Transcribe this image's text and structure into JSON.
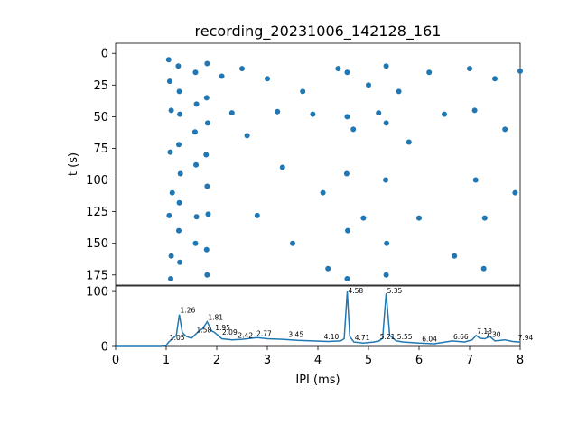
{
  "title": "recording_20231006_142128_161",
  "colors": {
    "series": "#1f77b4",
    "axis": "#000000",
    "background": "#ffffff"
  },
  "chart_data": [
    {
      "type": "scatter",
      "title": "recording_20231006_142128_161",
      "xlabel": "",
      "ylabel": "t (s)",
      "xlim": [
        0,
        8
      ],
      "ylim": [
        183,
        -8
      ],
      "y_inverted": true,
      "shared_x_with": "histogram",
      "yticks": [
        0,
        25,
        50,
        75,
        100,
        125,
        150,
        175
      ],
      "ytick_labels": [
        "0",
        "25",
        "50",
        "75",
        "100",
        "125",
        "150",
        "175"
      ],
      "x_range_of_points": [
        1.0,
        8.0
      ],
      "t_range_of_points": [
        0,
        180
      ],
      "dense_columns_ms": [
        1.05,
        1.26,
        1.58,
        1.81,
        4.58,
        5.35,
        7.1,
        7.3
      ],
      "dense_rows_s": [
        12,
        17,
        45,
        48,
        128,
        130
      ],
      "points": [
        [
          1.05,
          5
        ],
        [
          1.07,
          22
        ],
        [
          1.1,
          45
        ],
        [
          1.08,
          78
        ],
        [
          1.12,
          110
        ],
        [
          1.06,
          128
        ],
        [
          1.1,
          160
        ],
        [
          1.09,
          178
        ],
        [
          1.24,
          10
        ],
        [
          1.26,
          30
        ],
        [
          1.27,
          48
        ],
        [
          1.25,
          72
        ],
        [
          1.28,
          95
        ],
        [
          1.26,
          118
        ],
        [
          1.25,
          140
        ],
        [
          1.27,
          165
        ],
        [
          1.58,
          15
        ],
        [
          1.6,
          40
        ],
        [
          1.57,
          62
        ],
        [
          1.59,
          88
        ],
        [
          1.6,
          129
        ],
        [
          1.58,
          150
        ],
        [
          1.81,
          8
        ],
        [
          1.8,
          35
        ],
        [
          1.82,
          55
        ],
        [
          1.79,
          80
        ],
        [
          1.81,
          105
        ],
        [
          1.83,
          127
        ],
        [
          1.8,
          155
        ],
        [
          1.81,
          175
        ],
        [
          2.1,
          18
        ],
        [
          2.3,
          47
        ],
        [
          2.5,
          12
        ],
        [
          2.6,
          65
        ],
        [
          2.8,
          128
        ],
        [
          3.0,
          20
        ],
        [
          3.2,
          46
        ],
        [
          3.3,
          90
        ],
        [
          3.5,
          150
        ],
        [
          3.7,
          30
        ],
        [
          3.9,
          48
        ],
        [
          4.1,
          110
        ],
        [
          4.2,
          170
        ],
        [
          4.4,
          12
        ],
        [
          4.58,
          15
        ],
        [
          4.58,
          50
        ],
        [
          4.57,
          95
        ],
        [
          4.59,
          140
        ],
        [
          4.58,
          178
        ],
        [
          4.7,
          60
        ],
        [
          4.9,
          130
        ],
        [
          5.0,
          25
        ],
        [
          5.2,
          47
        ],
        [
          5.35,
          10
        ],
        [
          5.35,
          55
        ],
        [
          5.34,
          100
        ],
        [
          5.36,
          150
        ],
        [
          5.35,
          175
        ],
        [
          5.6,
          30
        ],
        [
          5.8,
          70
        ],
        [
          6.0,
          130
        ],
        [
          6.2,
          15
        ],
        [
          6.5,
          48
        ],
        [
          6.7,
          160
        ],
        [
          7.0,
          12
        ],
        [
          7.1,
          45
        ],
        [
          7.12,
          100
        ],
        [
          7.3,
          130
        ],
        [
          7.28,
          170
        ],
        [
          7.5,
          20
        ],
        [
          7.7,
          60
        ],
        [
          7.9,
          110
        ],
        [
          8.0,
          14
        ]
      ]
    },
    {
      "type": "line",
      "title": "",
      "xlabel": "IPI (ms)",
      "ylabel": "",
      "xlim": [
        0,
        8
      ],
      "ylim": [
        0,
        110
      ],
      "xticks": [
        0,
        1,
        2,
        3,
        4,
        5,
        6,
        7,
        8
      ],
      "xtick_labels": [
        "0",
        "1",
        "2",
        "3",
        "4",
        "5",
        "6",
        "7",
        "8"
      ],
      "yticks": [
        0,
        100
      ],
      "ytick_labels": [
        "0",
        "100"
      ],
      "x": [
        0,
        0.9,
        1.0,
        1.05,
        1.1,
        1.2,
        1.26,
        1.32,
        1.4,
        1.5,
        1.58,
        1.65,
        1.72,
        1.81,
        1.9,
        1.95,
        2.0,
        2.1,
        2.3,
        2.5,
        2.8,
        3.0,
        3.3,
        3.6,
        3.9,
        4.2,
        4.45,
        4.52,
        4.58,
        4.63,
        4.71,
        4.9,
        5.1,
        5.21,
        5.28,
        5.35,
        5.42,
        5.55,
        5.7,
        6.0,
        6.3,
        6.66,
        6.9,
        7.05,
        7.13,
        7.2,
        7.3,
        7.4,
        7.5,
        7.7,
        7.85,
        8.0
      ],
      "y": [
        0,
        0,
        2,
        8,
        12,
        20,
        58,
        25,
        18,
        15,
        22,
        28,
        32,
        45,
        28,
        26,
        22,
        14,
        12,
        13,
        16,
        14,
        13,
        11,
        10,
        9,
        10,
        14,
        100,
        18,
        8,
        6,
        8,
        10,
        15,
        97,
        20,
        10,
        8,
        6,
        5,
        10,
        8,
        12,
        20,
        15,
        14,
        18,
        10,
        12,
        9,
        8
      ],
      "peak_labels": [
        {
          "x": 1.05,
          "y": 8,
          "text": "1.05"
        },
        {
          "x": 1.26,
          "y": 58,
          "text": "1.26"
        },
        {
          "x": 1.58,
          "y": 22,
          "text": "1.58"
        },
        {
          "x": 1.81,
          "y": 45,
          "text": "1.81"
        },
        {
          "x": 1.95,
          "y": 26,
          "text": "1.95"
        },
        {
          "x": 2.09,
          "y": 18,
          "text": "2.09"
        },
        {
          "x": 2.4,
          "y": 12,
          "text": "2.42"
        },
        {
          "x": 2.77,
          "y": 16,
          "text": "2.77"
        },
        {
          "x": 3.4,
          "y": 14,
          "text": "3.45"
        },
        {
          "x": 4.1,
          "y": 10,
          "text": "4.10"
        },
        {
          "x": 4.58,
          "y": 100,
          "text": "4.58"
        },
        {
          "x": 4.71,
          "y": 8,
          "text": "4.71"
        },
        {
          "x": 5.21,
          "y": 10,
          "text": "5.21"
        },
        {
          "x": 5.35,
          "y": 97,
          "text": "5.35"
        },
        {
          "x": 5.55,
          "y": 10,
          "text": "5.55"
        },
        {
          "x": 6.04,
          "y": 6,
          "text": "6.04"
        },
        {
          "x": 6.66,
          "y": 10,
          "text": "6.66"
        },
        {
          "x": 7.13,
          "y": 20,
          "text": "7.13"
        },
        {
          "x": 7.3,
          "y": 14,
          "text": "7.30"
        },
        {
          "x": 7.94,
          "y": 8,
          "text": "7.94"
        }
      ]
    }
  ]
}
